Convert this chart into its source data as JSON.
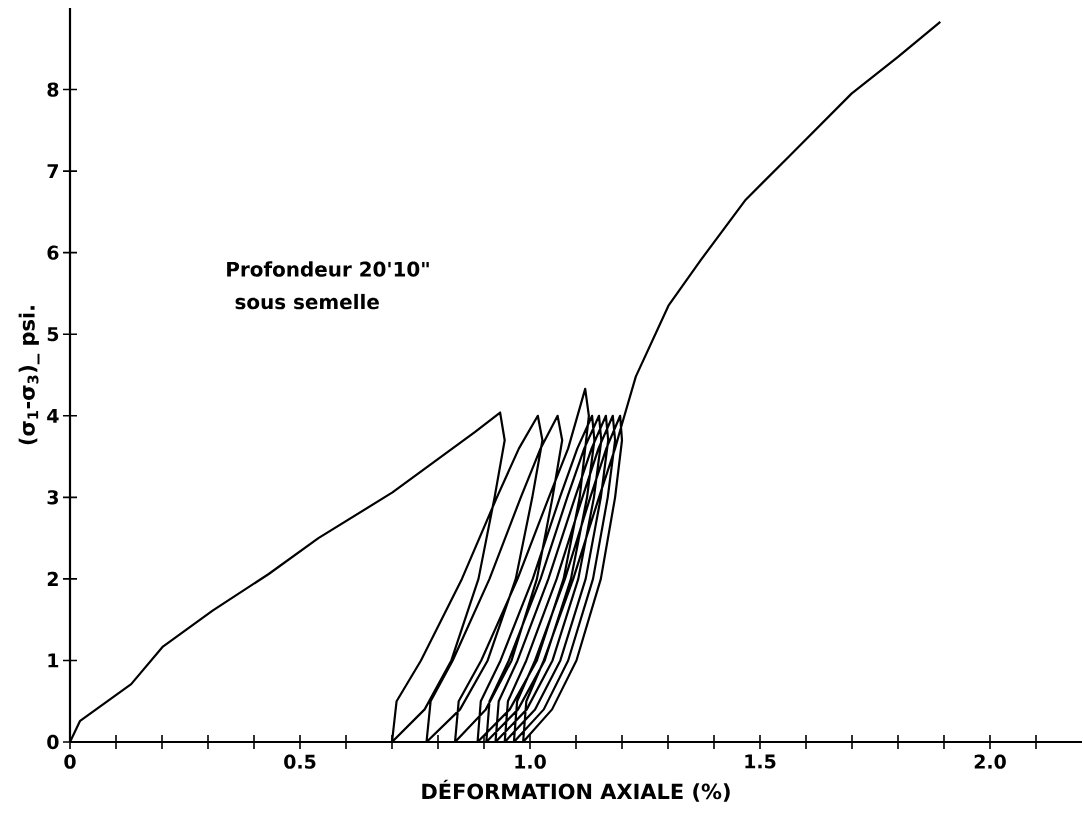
{
  "chart_data": {
    "type": "line",
    "xlabel": "DÉFORMATION AXIALE (%)",
    "ylabel": "(σ$_{1}$-σ$_{3}$)_ psi.",
    "annotations": [
      "Profondeur   20'10\"",
      "sous semelle"
    ],
    "xlim": [
      0,
      2.2
    ],
    "ylim": [
      0,
      9
    ],
    "xticks": [
      0,
      {
        "value": 0.1,
        "label": null
      },
      {
        "value": 0.2,
        "label": null
      },
      {
        "value": 0.3,
        "label": null
      },
      {
        "value": 0.4,
        "label": null
      },
      0.5,
      {
        "value": 0.6,
        "label": null
      },
      {
        "value": 0.7,
        "label": null
      },
      {
        "value": 0.8,
        "label": null
      },
      {
        "value": 0.9,
        "label": null
      },
      {
        "value": 1,
        "label": "1.0"
      },
      {
        "value": 1.1,
        "label": null
      },
      {
        "value": 1.2,
        "label": null
      },
      {
        "value": 1.3,
        "label": null
      },
      {
        "value": 1.4,
        "label": null
      },
      1.5,
      {
        "value": 1.6,
        "label": null
      },
      {
        "value": 1.7,
        "label": null
      },
      {
        "value": 1.8,
        "label": null
      },
      {
        "value": 1.9,
        "label": null
      },
      {
        "value": 2,
        "label": "2.0"
      },
      {
        "value": 2.1,
        "label": null
      }
    ],
    "yticks": [
      0,
      1,
      2,
      3,
      4,
      5,
      6,
      7,
      8
    ],
    "grid": false,
    "marker": "none",
    "line_style": "solid",
    "series": [
      {
        "color": "#000000",
        "x": [
          0,
          0.022,
          0.133,
          0.202,
          0.31,
          0.432,
          0.54,
          0.701,
          0.88,
          0.935,
          0.945,
          0.923,
          0.888,
          0.829,
          0.771,
          0.7,
          0.71,
          0.763,
          0.852,
          0.928,
          0.976,
          1.017,
          1.027,
          1.005,
          0.969,
          0.908,
          0.848,
          0.775,
          0.784,
          0.832,
          0.912,
          0.98,
          1.023,
          1.06,
          1.07,
          1.049,
          1.015,
          0.96,
          0.904,
          0.837,
          0.845,
          0.894,
          0.973,
          1.041,
          1.083,
          1.12,
          1.128,
          1.108,
          1.073,
          1.015,
          0.956,
          0.886,
          0.893,
          0.936,
          1.006,
          1.065,
          1.103,
          1.135,
          1.14,
          1.124,
          1.089,
          1.032,
          0.974,
          0.905,
          0.912,
          0.954,
          1.023,
          1.081,
          1.118,
          1.15,
          1.155,
          1.139,
          1.105,
          1.049,
          0.993,
          0.925,
          0.932,
          0.973,
          1.04,
          1.098,
          1.134,
          1.165,
          1.17,
          1.154,
          1.121,
          1.066,
          1.011,
          0.945,
          0.952,
          0.992,
          1.058,
          1.114,
          1.149,
          1.18,
          1.185,
          1.169,
          1.137,
          1.083,
          1.03,
          0.965,
          0.972,
          1.011,
          1.076,
          1.131,
          1.166,
          1.196,
          1.2,
          1.185,
          1.154,
          1.101,
          1.048,
          0.985,
          0.992,
          1.03,
          1.094,
          1.15,
          1.185,
          1.2,
          1.23,
          1.301,
          1.37,
          1.469,
          1.563,
          1.699,
          1.8,
          1.892
        ],
        "values": [
          0,
          0.26,
          0.71,
          1.17,
          1.61,
          2.06,
          2.5,
          3.06,
          3.8,
          4.04,
          3.7,
          3.0,
          2.0,
          1.0,
          0.4,
          0,
          0.5,
          1.0,
          2.0,
          3.0,
          3.6,
          4.0,
          3.7,
          3.0,
          2.0,
          1.0,
          0.4,
          0,
          0.5,
          1.0,
          2.0,
          3.0,
          3.6,
          4.0,
          3.7,
          3.0,
          2.0,
          1.0,
          0.4,
          0,
          0.5,
          1.0,
          2.0,
          3.0,
          3.6,
          4.33,
          4.0,
          3.0,
          2.0,
          1.0,
          0.4,
          0,
          0.5,
          1.0,
          2.0,
          3.0,
          3.6,
          4.0,
          3.7,
          3.0,
          2.0,
          1.0,
          0.4,
          0,
          0.5,
          1.0,
          2.0,
          3.0,
          3.6,
          4.0,
          3.7,
          3.0,
          2.0,
          1.0,
          0.4,
          0,
          0.5,
          1.0,
          2.0,
          3.0,
          3.6,
          4.0,
          3.7,
          3.0,
          2.0,
          1.0,
          0.4,
          0,
          0.5,
          1.0,
          2.0,
          3.0,
          3.6,
          4.0,
          3.7,
          3.0,
          2.0,
          1.0,
          0.4,
          0,
          0.5,
          1.0,
          2.0,
          3.0,
          3.6,
          4.0,
          3.7,
          3.0,
          2.0,
          1.0,
          0.4,
          0,
          0.5,
          1.0,
          2.0,
          3.0,
          3.6,
          3.9,
          4.48,
          5.35,
          5.9,
          6.65,
          7.18,
          7.95,
          8.4,
          8.83
        ]
      }
    ]
  }
}
